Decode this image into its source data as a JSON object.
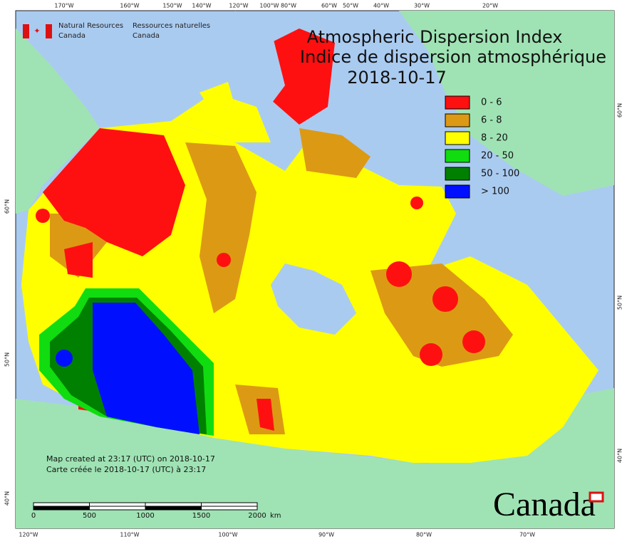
{
  "header": {
    "en": [
      "Natural Resources",
      "Canada"
    ],
    "fr": [
      "Ressources naturelles",
      "Canada"
    ]
  },
  "title": [
    "Atmospheric Dispersion Index",
    "Indice de dispersion atmosphérique"
  ],
  "date": "2018-10-17",
  "legend": [
    {
      "label": "0 - 6",
      "color": "#ff1010"
    },
    {
      "label": "6 - 8",
      "color": "#dc9a14"
    },
    {
      "label": "8 - 20",
      "color": "#ffff00"
    },
    {
      "label": "20 - 50",
      "color": "#10dc10"
    },
    {
      "label": "50 - 100",
      "color": "#008000"
    },
    {
      "label": "> 100",
      "color": "#0010ff"
    }
  ],
  "notes": [
    "Map created at 23:17 (UTC) on 2018-10-17",
    "Carte créée le 2018-10-17 (UTC) à 23:17"
  ],
  "scale": {
    "ticks": [
      0,
      500,
      1000,
      1500,
      2000
    ],
    "unit": "km"
  },
  "graticule": {
    "top": [
      "170°W",
      "160°W",
      "150°W",
      "140°W",
      "120°W",
      "100°W",
      "80°W",
      "60°W",
      "50°W",
      "40°W",
      "30°W",
      "20°W"
    ],
    "bottom": [
      "120°W",
      "110°W",
      "100°W",
      "90°W",
      "80°W",
      "70°W"
    ],
    "left": [
      "60°N",
      "50°N",
      "40°N"
    ],
    "right": [
      "60°N",
      "50°N",
      "40°N"
    ]
  },
  "wordmark": "Canada"
}
